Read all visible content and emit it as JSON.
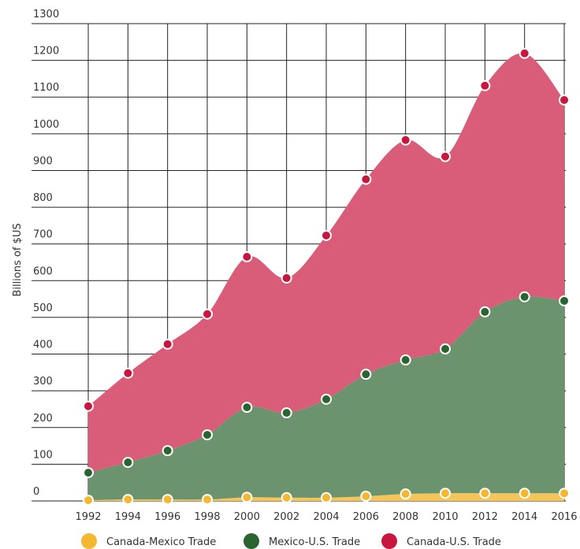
{
  "chart_data": {
    "type": "stacked_area",
    "y_label": "Billions of $US",
    "categories": [
      "1992",
      "1994",
      "1996",
      "1998",
      "2000",
      "2002",
      "2004",
      "2006",
      "2008",
      "2010",
      "2012",
      "2014",
      "2016"
    ],
    "series": [
      {
        "name": "Canada-Mexico Trade",
        "color": "#f4b731",
        "values": [
          2,
          4,
          4,
          4,
          10,
          9,
          9,
          13,
          19,
          21,
          21,
          21,
          21
        ]
      },
      {
        "name": "Mexico-U.S. Trade",
        "color": "#2a6430",
        "values": [
          75,
          101,
          133,
          176,
          245,
          231,
          268,
          332,
          365,
          393,
          494,
          535,
          524
        ]
      },
      {
        "name": "Canada-U.S. Trade",
        "color": "#c8173f",
        "values": [
          181,
          243,
          290,
          329,
          410,
          367,
          446,
          531,
          599,
          524,
          616,
          663,
          547
        ]
      }
    ],
    "ylim": [
      0,
      1300
    ],
    "yticks": [
      0,
      100,
      200,
      300,
      400,
      500,
      600,
      700,
      800,
      900,
      1000,
      1100,
      1200,
      1300
    ],
    "grid": true
  }
}
